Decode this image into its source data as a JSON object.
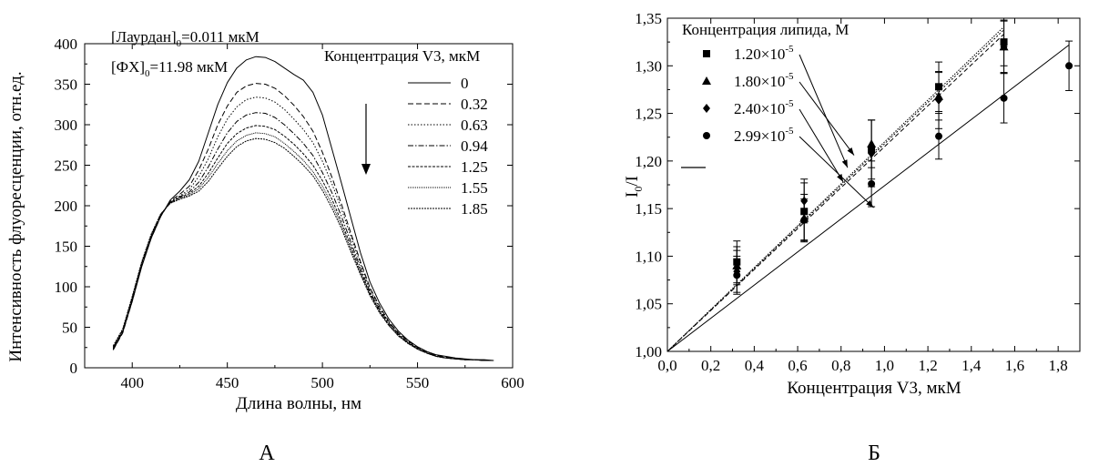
{
  "panel_labels": [
    "А",
    "Б"
  ],
  "chart_data": [
    {
      "type": "line",
      "panel": "А",
      "xlabel": "Длина волны, нм",
      "ylabel": "Интенсивность флуоресценции, отн.ед.",
      "xlim": [
        375,
        600
      ],
      "ylim": [
        0,
        400
      ],
      "xticks": [
        400,
        450,
        500,
        550,
        600
      ],
      "yticks": [
        0,
        50,
        100,
        150,
        200,
        250,
        300,
        350,
        400
      ],
      "annotations": {
        "laurdan_main": "[Лаурдан]",
        "laurdan_sub": "0",
        "laurdan_val": "=0.011 мкМ",
        "fx_main": "[ФХ]",
        "fx_sub": "0",
        "fx_val": "=11.98 мкМ"
      },
      "legend_title": "Концентрация V3, мкМ",
      "legend_position": "top-right",
      "x": [
        390,
        395,
        400,
        405,
        410,
        415,
        420,
        425,
        430,
        435,
        440,
        445,
        450,
        455,
        460,
        465,
        470,
        475,
        480,
        485,
        490,
        495,
        500,
        505,
        510,
        515,
        520,
        525,
        530,
        535,
        540,
        545,
        550,
        555,
        560,
        565,
        570,
        575,
        580,
        585,
        590
      ],
      "series": [
        {
          "name": "0",
          "dash": "",
          "values": [
            22,
            44,
            82,
            125,
            160,
            187,
            207,
            218,
            232,
            255,
            290,
            325,
            352,
            370,
            380,
            384,
            383,
            378,
            370,
            362,
            355,
            340,
            312,
            270,
            228,
            185,
            142,
            106,
            80,
            60,
            45,
            34,
            26,
            20,
            16,
            14,
            12,
            11,
            10,
            10,
            9
          ]
        },
        {
          "name": "0.32",
          "dash": "6,3",
          "values": [
            22,
            43,
            82,
            126,
            160,
            187,
            206,
            214,
            224,
            244,
            270,
            300,
            323,
            340,
            348,
            351,
            350,
            345,
            336,
            324,
            310,
            292,
            266,
            235,
            202,
            166,
            131,
            99,
            76,
            57,
            43,
            33,
            25,
            19,
            15,
            13,
            11,
            10,
            10,
            9,
            9
          ]
        },
        {
          "name": "0.63",
          "dash": "1.5,2",
          "values": [
            23,
            44,
            83,
            127,
            161,
            188,
            205,
            212,
            220,
            236,
            258,
            285,
            307,
            322,
            331,
            334,
            333,
            328,
            319,
            307,
            294,
            278,
            255,
            227,
            196,
            162,
            128,
            97,
            74,
            56,
            42,
            32,
            24,
            19,
            15,
            12,
            11,
            10,
            10,
            9,
            9
          ]
        },
        {
          "name": "0.94",
          "dash": "6,2,1.5,2",
          "values": [
            24,
            45,
            85,
            128,
            162,
            189,
            204,
            211,
            217,
            229,
            248,
            270,
            290,
            304,
            312,
            315,
            314,
            309,
            300,
            289,
            277,
            262,
            241,
            216,
            187,
            155,
            123,
            94,
            72,
            55,
            41,
            31,
            24,
            18,
            14,
            12,
            11,
            10,
            10,
            9,
            9
          ]
        },
        {
          "name": "1.25",
          "dash": "3,1.5",
          "values": [
            25,
            46,
            86,
            129,
            163,
            189,
            204,
            210,
            215,
            224,
            240,
            259,
            277,
            289,
            296,
            299,
            298,
            294,
            286,
            276,
            264,
            250,
            231,
            208,
            180,
            150,
            119,
            92,
            70,
            53,
            40,
            31,
            23,
            18,
            14,
            12,
            11,
            10,
            10,
            9,
            9
          ]
        },
        {
          "name": "1.55",
          "dash": "1,1",
          "values": [
            26,
            47,
            87,
            130,
            164,
            190,
            203,
            209,
            213,
            221,
            235,
            252,
            268,
            280,
            287,
            290,
            289,
            285,
            277,
            267,
            256,
            242,
            224,
            202,
            176,
            146,
            117,
            90,
            69,
            52,
            40,
            30,
            23,
            18,
            14,
            12,
            11,
            10,
            10,
            9,
            9
          ]
        },
        {
          "name": "1.85",
          "dash": "2,1",
          "values": [
            27,
            48,
            88,
            131,
            165,
            190,
            203,
            208,
            212,
            218,
            230,
            246,
            261,
            273,
            280,
            283,
            282,
            278,
            271,
            261,
            250,
            237,
            219,
            197,
            172,
            143,
            115,
            89,
            68,
            52,
            39,
            30,
            23,
            18,
            14,
            12,
            11,
            10,
            10,
            9,
            9
          ]
        }
      ]
    },
    {
      "type": "scatter",
      "panel": "Б",
      "xlabel": "Концентрация V3, мкМ",
      "ylabel_main": "I",
      "ylabel_sub": "0",
      "ylabel_rest": "/I",
      "xlim": [
        0,
        1.9
      ],
      "ylim": [
        1.0,
        1.35
      ],
      "xticks": [
        "0,0",
        "0,2",
        "0,4",
        "0,6",
        "0,8",
        "1,0",
        "1,2",
        "1,4",
        "1,6",
        "1,8"
      ],
      "yticks": [
        "1,00",
        "1,05",
        "1,10",
        "1,15",
        "1,20",
        "1,25",
        "1,30",
        "1,35"
      ],
      "legend_title": "Концентрация липида, М",
      "legend_position": "top-left",
      "series": [
        {
          "name": "1.20×10",
          "exp": "-5",
          "marker": "square",
          "fit_slope": 0.218,
          "fit_dash": "2,2",
          "fit_xmax": 1.55,
          "x": [
            0.32,
            0.63,
            0.94,
            1.25,
            1.55
          ],
          "y": [
            1.094,
            1.147,
            1.212,
            1.278,
            1.325
          ],
          "err": [
            0.022,
            0.03,
            0.031,
            0.026,
            0.025
          ]
        },
        {
          "name": "1.80×10",
          "exp": "-5",
          "marker": "triangle",
          "fit_slope": 0.22,
          "fit_dash": "1.5,1.5",
          "fit_xmax": 1.55,
          "x": [
            0.32,
            0.63,
            0.94,
            1.25,
            1.55
          ],
          "y": [
            1.09,
            1.14,
            1.218,
            1.268,
            1.32
          ],
          "err": [
            0.02,
            0.025,
            0.025,
            0.025,
            0.027
          ]
        },
        {
          "name": "2.40×10",
          "exp": "-5",
          "marker": "diamond",
          "fit_slope": 0.215,
          "fit_dash": "5,3",
          "fit_xmax": 1.55,
          "x": [
            0.32,
            0.63,
            0.94,
            1.25,
            1.55
          ],
          "y": [
            1.084,
            1.158,
            1.208,
            1.264,
            1.32
          ],
          "err": [
            0.022,
            0.023,
            0.035,
            0.03,
            0.028
          ]
        },
        {
          "name": "2.99×10",
          "exp": "-5",
          "marker": "circle",
          "fit_slope": 0.174,
          "fit_dash": "",
          "fit_xmax": 1.85,
          "x": [
            0.32,
            0.63,
            0.94,
            1.25,
            1.55,
            1.85
          ],
          "y": [
            1.08,
            1.138,
            1.176,
            1.226,
            1.266,
            1.3
          ],
          "err": [
            0.02,
            0.022,
            0.024,
            0.024,
            0.026,
            0.026
          ]
        }
      ]
    }
  ]
}
